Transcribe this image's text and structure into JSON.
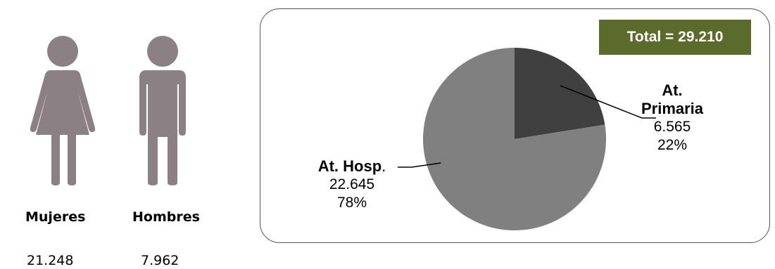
{
  "gender": {
    "women": {
      "label": "Mujeres",
      "count": "21.248",
      "icon": "woman-icon"
    },
    "men": {
      "label": "Hombres",
      "count": "7.962",
      "icon": "man-icon"
    },
    "icon_color": "#8b8184"
  },
  "total_label": "Total  = 29.210",
  "colors": {
    "primaria": "#404040",
    "hosp": "#808080",
    "total_bg": "#5a6b2b"
  },
  "chart_data": {
    "type": "pie",
    "title": "",
    "slices": [
      {
        "name_line1": "At.",
        "name_line2": "Primaria",
        "value": 6565,
        "value_label": "6.565",
        "percent_label": "22%",
        "color": "#404040"
      },
      {
        "name_line1": "At. Hosp",
        "name_suffix": ".",
        "value": 22645,
        "value_label": "22.645",
        "percent_label": "78%",
        "color": "#808080"
      }
    ],
    "total": 29210
  }
}
